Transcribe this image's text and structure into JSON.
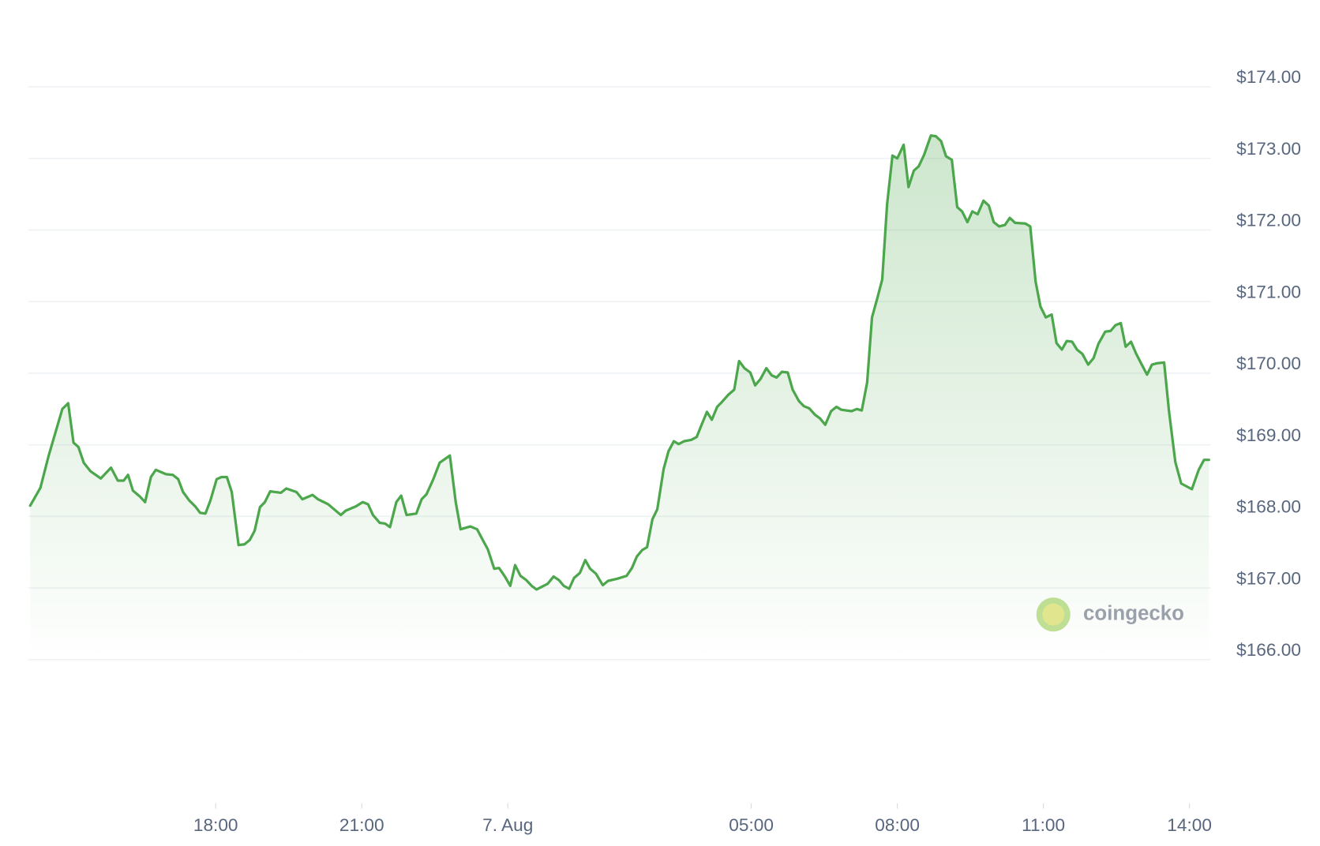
{
  "chart_data": {
    "type": "line",
    "watermark": "coingecko",
    "color": "#4ca64c",
    "grid": true,
    "xlim": [
      14.15,
      38.44
    ],
    "xticks": [
      {
        "value": 18,
        "label": "18:00"
      },
      {
        "value": 21,
        "label": "21:00"
      },
      {
        "value": 24,
        "label": "7. Aug"
      },
      {
        "value": 29,
        "label": "05:00"
      },
      {
        "value": 32,
        "label": "08:00"
      },
      {
        "value": 35,
        "label": "11:00"
      },
      {
        "value": 38,
        "label": "14:00"
      }
    ],
    "ylim": [
      166,
      174
    ],
    "yticks": [
      {
        "value": 166,
        "label": "$166.00"
      },
      {
        "value": 167,
        "label": "$167.00"
      },
      {
        "value": 168,
        "label": "$168.00"
      },
      {
        "value": 169,
        "label": "$169.00"
      },
      {
        "value": 170,
        "label": "$170.00"
      },
      {
        "value": 171,
        "label": "$171.00"
      },
      {
        "value": 172,
        "label": "$172.00"
      },
      {
        "value": 173,
        "label": "$173.00"
      },
      {
        "value": 174,
        "label": "$174.00"
      }
    ],
    "x": [
      14.19,
      14.4,
      14.57,
      14.85,
      14.97,
      15.08,
      15.18,
      15.29,
      15.43,
      15.64,
      15.85,
      15.99,
      16.11,
      16.2,
      16.3,
      16.44,
      16.55,
      16.67,
      16.77,
      16.98,
      17.12,
      17.23,
      17.33,
      17.46,
      17.58,
      17.68,
      17.79,
      17.89,
      18.02,
      18.12,
      18.23,
      18.33,
      18.47,
      18.59,
      18.7,
      18.8,
      18.91,
      19.01,
      19.12,
      19.34,
      19.45,
      19.66,
      19.78,
      19.99,
      20.1,
      20.31,
      20.57,
      20.67,
      20.88,
      21.02,
      21.13,
      21.23,
      21.37,
      21.48,
      21.58,
      21.71,
      21.81,
      21.92,
      22.12,
      22.23,
      22.33,
      22.47,
      22.6,
      22.81,
      22.93,
      23.03,
      23.23,
      23.37,
      23.47,
      23.59,
      23.72,
      23.82,
      23.94,
      24.05,
      24.15,
      24.26,
      24.38,
      24.49,
      24.59,
      24.82,
      24.94,
      25.05,
      25.15,
      25.26,
      25.36,
      25.48,
      25.59,
      25.69,
      25.81,
      25.95,
      26.06,
      26.25,
      26.44,
      26.55,
      26.65,
      26.76,
      26.86,
      26.97,
      27.07,
      27.2,
      27.3,
      27.41,
      27.51,
      27.62,
      27.77,
      27.88,
      27.98,
      28.09,
      28.19,
      28.3,
      28.4,
      28.53,
      28.65,
      28.75,
      28.86,
      28.98,
      29.08,
      29.19,
      29.31,
      29.42,
      29.52,
      29.63,
      29.75,
      29.85,
      29.98,
      30.08,
      30.19,
      30.31,
      30.41,
      30.52,
      30.64,
      30.75,
      30.85,
      31.06,
      31.17,
      31.27,
      31.38,
      31.48,
      31.59,
      31.69,
      31.79,
      31.9,
      32.0,
      32.13,
      32.23,
      32.34,
      32.44,
      32.55,
      32.69,
      32.79,
      32.9,
      33.0,
      33.12,
      33.23,
      33.33,
      33.44,
      33.54,
      33.65,
      33.77,
      33.88,
      33.98,
      34.09,
      34.21,
      34.31,
      34.42,
      34.63,
      34.73,
      34.84,
      34.94,
      35.05,
      35.17,
      35.27,
      35.38,
      35.48,
      35.59,
      35.69,
      35.8,
      35.92,
      36.03,
      36.13,
      36.27,
      36.38,
      36.48,
      36.59,
      36.69,
      36.8,
      36.9,
      37.02,
      37.13,
      37.23,
      37.34,
      37.48,
      37.58,
      37.71,
      37.83,
      38.05,
      38.19,
      38.3,
      38.4
    ],
    "values": [
      168.15,
      168.4,
      168.85,
      169.5,
      169.58,
      169.03,
      168.97,
      168.75,
      168.63,
      168.53,
      168.68,
      168.5,
      168.5,
      168.58,
      168.36,
      168.28,
      168.2,
      168.55,
      168.65,
      168.59,
      168.58,
      168.52,
      168.34,
      168.22,
      168.14,
      168.05,
      168.04,
      168.22,
      168.52,
      168.55,
      168.55,
      168.34,
      167.6,
      167.61,
      167.67,
      167.8,
      168.13,
      168.2,
      168.35,
      168.33,
      168.39,
      168.34,
      168.24,
      168.3,
      168.24,
      168.17,
      168.02,
      168.08,
      168.14,
      168.2,
      168.17,
      168.02,
      167.91,
      167.9,
      167.85,
      168.2,
      168.29,
      168.02,
      168.04,
      168.24,
      168.31,
      168.52,
      168.75,
      168.85,
      168.2,
      167.82,
      167.86,
      167.82,
      167.69,
      167.54,
      167.27,
      167.28,
      167.16,
      167.03,
      167.32,
      167.17,
      167.11,
      167.03,
      166.98,
      167.06,
      167.16,
      167.11,
      167.03,
      166.99,
      167.14,
      167.21,
      167.39,
      167.27,
      167.2,
      167.04,
      167.1,
      167.13,
      167.17,
      167.28,
      167.44,
      167.53,
      167.57,
      167.96,
      168.1,
      168.66,
      168.91,
      169.05,
      169.01,
      169.05,
      169.07,
      169.11,
      169.28,
      169.46,
      169.35,
      169.53,
      169.6,
      169.7,
      169.77,
      170.17,
      170.07,
      170.01,
      169.83,
      169.92,
      170.07,
      169.97,
      169.94,
      170.02,
      170.01,
      169.77,
      169.61,
      169.54,
      169.51,
      169.42,
      169.37,
      169.28,
      169.47,
      169.53,
      169.49,
      169.47,
      169.5,
      169.48,
      169.87,
      170.78,
      171.05,
      171.31,
      172.36,
      173.04,
      173.0,
      173.19,
      172.6,
      172.83,
      172.89,
      173.05,
      173.32,
      173.31,
      173.24,
      173.03,
      172.98,
      172.32,
      172.26,
      172.11,
      172.26,
      172.22,
      172.41,
      172.34,
      172.11,
      172.05,
      172.07,
      172.17,
      172.1,
      172.09,
      172.05,
      171.28,
      170.93,
      170.78,
      170.82,
      170.42,
      170.33,
      170.45,
      170.44,
      170.33,
      170.27,
      170.12,
      170.21,
      170.41,
      170.58,
      170.59,
      170.67,
      170.7,
      170.37,
      170.44,
      170.28,
      170.12,
      169.98,
      170.12,
      170.14,
      170.15,
      169.47,
      168.76,
      168.46,
      168.38,
      168.65,
      168.79,
      168.79
    ]
  }
}
